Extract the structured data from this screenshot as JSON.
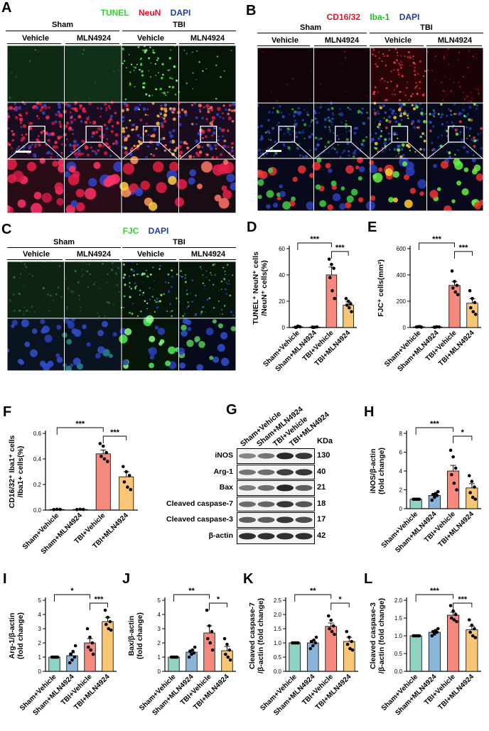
{
  "panelA": {
    "label": "A",
    "legend": [
      {
        "text": "TUNEL",
        "color": "#22dd22"
      },
      {
        "text": "NeuN",
        "color": "#e8102f"
      },
      {
        "text": "DAPI",
        "color": "#1f3c9c"
      }
    ],
    "group1": "Sham",
    "group2": "TBI",
    "cols": [
      "Vehicle",
      "MLN4924",
      "Vehicle",
      "MLN4924"
    ]
  },
  "panelB": {
    "label": "B",
    "legend": [
      {
        "text": "CD16/32",
        "color": "#e8102f"
      },
      {
        "text": "Iba-1",
        "color": "#22dd22"
      },
      {
        "text": "DAPI",
        "color": "#1f3c9c"
      }
    ],
    "group1": "Sham",
    "group2": "TBI",
    "cols": [
      "Vehicle",
      "MLN4924",
      "Vehicle",
      "MLN4924"
    ]
  },
  "panelC": {
    "label": "C",
    "legend": [
      {
        "text": "FJC",
        "color": "#22dd22"
      },
      {
        "text": "DAPI",
        "color": "#1f3c9c"
      }
    ],
    "group1": "Sham",
    "group2": "TBI",
    "cols": [
      "Vehicle",
      "MLN4924",
      "Vehicle",
      "MLN4924"
    ]
  },
  "panelG": {
    "label": "G",
    "lanes": [
      "Sham+Vehicle",
      "Sham+MLN4924",
      "TBI+Vehicle",
      "TBI+MLN4924"
    ],
    "kda_header": "KDa",
    "rows": [
      {
        "name": "iNOS",
        "kda": "130"
      },
      {
        "name": "Arg-1",
        "kda": "40"
      },
      {
        "name": "Bax",
        "kda": "21"
      },
      {
        "name": "Cleaved caspase-7",
        "kda": "18"
      },
      {
        "name": "Cleaved caspase-3",
        "kda": "17"
      },
      {
        "name": "β-actin",
        "kda": "42"
      }
    ]
  },
  "colors": {
    "bar1": "#8fd3c3",
    "bar2": "#8ab4d8",
    "bar3": "#f4897e",
    "bar4": "#f7c777"
  },
  "chart_data": [
    {
      "id": "D",
      "type": "bar",
      "label": "D",
      "ylabel_lines": [
        "TUNEL⁺ NeuN⁺ cells",
        "/NeuN⁺ cells(%)"
      ],
      "categories": [
        "Sham+Vehicle",
        "Sham+MLN4924",
        "TBI+Vehicle",
        "TBI+MLN4924"
      ],
      "values": [
        0.5,
        0.3,
        40,
        17
      ],
      "errors": [
        0.4,
        0.2,
        6,
        2.5
      ],
      "points": [
        [
          0.2,
          1,
          0.5,
          0.1,
          0.8
        ],
        [
          0.3,
          0.2,
          0.4,
          0.1
        ],
        [
          52,
          48,
          45,
          38,
          28,
          22
        ],
        [
          22,
          20,
          18,
          17,
          15,
          12
        ]
      ],
      "ylim": [
        0,
        60
      ],
      "yticks": [
        0,
        20,
        40,
        60
      ],
      "sig": [
        {
          "from": 0,
          "to": 2,
          "text": "***"
        },
        {
          "from": 2,
          "to": 3,
          "text": "***"
        }
      ]
    },
    {
      "id": "E",
      "type": "bar",
      "label": "E",
      "ylabel_lines": [
        "FJC⁺ cells(mm²)"
      ],
      "categories": [
        "Sham+Vehicle",
        "Sham+MLN4924",
        "TBI+Vehicle",
        "TBI+MLN4924"
      ],
      "values": [
        5,
        4,
        320,
        185
      ],
      "errors": [
        2,
        2,
        30,
        35
      ],
      "points": [
        [
          4,
          6,
          3,
          5,
          7
        ],
        [
          3,
          5,
          4,
          2
        ],
        [
          430,
          350,
          320,
          300,
          270,
          250
        ],
        [
          280,
          220,
          190,
          150,
          120,
          100
        ]
      ],
      "ylim": [
        0,
        600
      ],
      "yticks": [
        0,
        200,
        400,
        600
      ],
      "sig": [
        {
          "from": 0,
          "to": 2,
          "text": "***"
        },
        {
          "from": 2,
          "to": 3,
          "text": "***"
        }
      ]
    },
    {
      "id": "F",
      "type": "bar",
      "label": "F",
      "ylabel_lines": [
        "CD16/32⁺ Iba1⁺ cells",
        "/Iba1+ cells(%)"
      ],
      "categories": [
        "Sham+Vehicle",
        "Sham+MLN4924",
        "TBI+Vehicle",
        "TBI+MLN4924"
      ],
      "values": [
        0.005,
        0.005,
        0.44,
        0.26
      ],
      "errors": [
        0.002,
        0.002,
        0.03,
        0.04
      ],
      "points": [
        [
          0.004,
          0.006,
          0.005
        ],
        [
          0.004,
          0.006,
          0.005
        ],
        [
          0.52,
          0.5,
          0.45,
          0.42,
          0.4,
          0.38
        ],
        [
          0.34,
          0.3,
          0.27,
          0.22,
          0.18,
          0.16
        ]
      ],
      "ylim": [
        0,
        0.6
      ],
      "yticks": [
        0.0,
        0.2,
        0.4,
        0.6
      ],
      "sig": [
        {
          "from": 0,
          "to": 2,
          "text": "***"
        },
        {
          "from": 2,
          "to": 3,
          "text": "***"
        }
      ]
    },
    {
      "id": "H",
      "type": "bar",
      "label": "H",
      "ylabel_lines": [
        "iNOS/β-actin",
        "(fold change)"
      ],
      "categories": [
        "Sham+Vehicle",
        "Sham+MLN4924",
        "TBI+Vehicle",
        "TBI+MLN4924"
      ],
      "values": [
        1,
        1.4,
        4.0,
        2.2
      ],
      "errors": [
        0.05,
        0.2,
        0.6,
        0.45
      ],
      "points": [
        [
          1,
          1,
          1,
          1,
          1,
          1
        ],
        [
          0.9,
          1.2,
          1.4,
          1.5,
          1.6,
          1.8
        ],
        [
          6.2,
          5.5,
          4.3,
          3.6,
          2.7,
          2.0
        ],
        [
          3.5,
          2.9,
          2.3,
          1.7,
          1.2,
          1.0
        ]
      ],
      "ylim": [
        0,
        8
      ],
      "yticks": [
        0,
        2,
        4,
        6,
        8
      ],
      "sig": [
        {
          "from": 0,
          "to": 2,
          "text": "***"
        },
        {
          "from": 2,
          "to": 3,
          "text": "*"
        }
      ]
    },
    {
      "id": "I",
      "type": "bar",
      "label": "I",
      "ylabel_lines": [
        "Arg-1/β-actin",
        "(fold change)"
      ],
      "categories": [
        "Sham+Vehicle",
        "Sham+MLN4924",
        "TBI+Vehicle",
        "TBI+MLN4924"
      ],
      "values": [
        1,
        1.1,
        2.0,
        3.5
      ],
      "errors": [
        0.03,
        0.2,
        0.3,
        0.3
      ],
      "points": [
        [
          1,
          1,
          1,
          1,
          1,
          1
        ],
        [
          0.6,
          0.8,
          1.0,
          1.2,
          1.4,
          1.8
        ],
        [
          3.0,
          2.4,
          2.0,
          1.7,
          1.5,
          1.2
        ],
        [
          4.3,
          3.8,
          3.5,
          3.3,
          3.0,
          2.9
        ]
      ],
      "ylim": [
        0,
        5
      ],
      "yticks": [
        0,
        1,
        2,
        3,
        4,
        5
      ],
      "sig": [
        {
          "from": 0,
          "to": 2,
          "text": "*"
        },
        {
          "from": 2,
          "to": 3,
          "text": "***"
        }
      ]
    },
    {
      "id": "J",
      "type": "bar",
      "label": "J",
      "ylabel_lines": [
        "Bax/β-actin",
        "(fold change)"
      ],
      "categories": [
        "Sham+Vehicle",
        "Sham+MLN4924",
        "TBI+Vehicle",
        "TBI+MLN4924"
      ],
      "values": [
        1,
        1.35,
        2.7,
        1.45
      ],
      "errors": [
        0.03,
        0.15,
        0.5,
        0.3
      ],
      "points": [
        [
          1,
          1,
          1,
          1,
          1,
          1
        ],
        [
          1.0,
          1.2,
          1.3,
          1.4,
          1.5,
          1.7
        ],
        [
          4.3,
          3.2,
          2.8,
          2.3,
          2.0,
          1.5
        ],
        [
          2.3,
          1.9,
          1.5,
          1.2,
          1.0,
          0.8
        ]
      ],
      "ylim": [
        0,
        5
      ],
      "yticks": [
        0,
        1,
        2,
        3,
        4,
        5
      ],
      "sig": [
        {
          "from": 0,
          "to": 2,
          "text": "**"
        },
        {
          "from": 2,
          "to": 3,
          "text": "*"
        }
      ]
    },
    {
      "id": "K",
      "type": "bar",
      "label": "K",
      "ylabel_lines": [
        "Cleaved caspase-7",
        "/β-actin (fold change)"
      ],
      "categories": [
        "Sham+Vehicle",
        "Sham+MLN4924",
        "TBI+Vehicle",
        "TBI+MLN4924"
      ],
      "values": [
        1,
        1.0,
        1.58,
        1.05
      ],
      "errors": [
        0.02,
        0.08,
        0.12,
        0.15
      ],
      "points": [
        [
          1,
          1,
          1,
          1,
          1,
          1
        ],
        [
          0.8,
          0.9,
          1.0,
          1.05,
          1.1,
          1.2
        ],
        [
          1.95,
          1.8,
          1.6,
          1.5,
          1.4,
          1.3
        ],
        [
          1.4,
          1.2,
          1.05,
          0.95,
          0.8,
          0.75
        ]
      ],
      "ylim": [
        0,
        2.5
      ],
      "yticks": [
        0.0,
        0.5,
        1.0,
        1.5,
        2.0,
        2.5
      ],
      "sig": [
        {
          "from": 0,
          "to": 2,
          "text": "**"
        },
        {
          "from": 2,
          "to": 3,
          "text": "*"
        }
      ]
    },
    {
      "id": "L",
      "type": "bar",
      "label": "L",
      "ylabel_lines": [
        "Cleaved caspase-3",
        "/β-actin (fold change)"
      ],
      "categories": [
        "Sham+Vehicle",
        "Sham+MLN4924",
        "TBI+Vehicle",
        "TBI+MLN4924"
      ],
      "values": [
        1,
        1.1,
        1.58,
        1.17
      ],
      "errors": [
        0.01,
        0.04,
        0.08,
        0.1
      ],
      "points": [
        [
          1,
          1,
          1,
          1,
          1,
          1
        ],
        [
          1.0,
          1.05,
          1.1,
          1.12,
          1.15,
          1.2
        ],
        [
          1.85,
          1.7,
          1.6,
          1.5,
          1.45,
          1.4
        ],
        [
          1.45,
          1.3,
          1.2,
          1.1,
          1.0,
          0.95
        ]
      ],
      "ylim": [
        0,
        2.0
      ],
      "yticks": [
        0.0,
        0.5,
        1.0,
        1.5,
        2.0
      ],
      "sig": [
        {
          "from": 0,
          "to": 2,
          "text": "***"
        },
        {
          "from": 2,
          "to": 3,
          "text": "***"
        }
      ]
    }
  ]
}
